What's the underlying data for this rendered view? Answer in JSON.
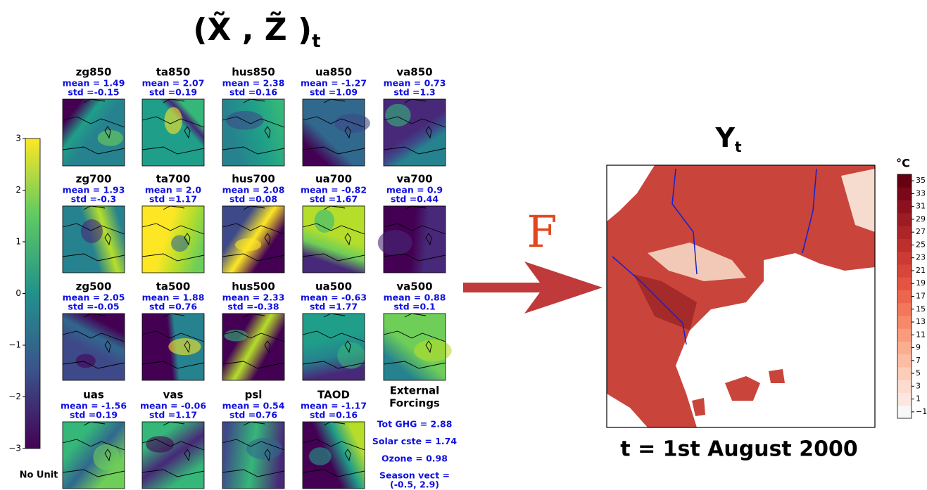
{
  "input_title": {
    "main": "(X̃ , Z̃ )",
    "subscript": "t"
  },
  "input_colorbar": {
    "ylim": [
      -3,
      3
    ],
    "yticks": [
      {
        "value": -3,
        "label": "−3"
      },
      {
        "value": -2,
        "label": "−2"
      },
      {
        "value": -1,
        "label": "−1"
      },
      0,
      1,
      2,
      3
    ],
    "unit": "No Unit"
  },
  "panels": [
    {
      "name": "zg850",
      "mean": "mean = 1.49",
      "std": "std =-0.15"
    },
    {
      "name": "ta850",
      "mean": "mean = 2.07",
      "std": "std =0.19"
    },
    {
      "name": "hus850",
      "mean": "mean = 2.38",
      "std": "std =0.16"
    },
    {
      "name": "ua850",
      "mean": "mean = -1.27",
      "std": "std =1.09"
    },
    {
      "name": "va850",
      "mean": "mean = 0.73",
      "std": "std =1.3"
    },
    {
      "name": "zg700",
      "mean": "mean = 1.93",
      "std": "std =-0.3"
    },
    {
      "name": "ta700",
      "mean": "mean = 2.0",
      "std": "std =1.17"
    },
    {
      "name": "hus700",
      "mean": "mean = 2.08",
      "std": "std =0.08"
    },
    {
      "name": "ua700",
      "mean": "mean = -0.82",
      "std": "std =1.67"
    },
    {
      "name": "va700",
      "mean": "mean = 0.9",
      "std": "std =0.44"
    },
    {
      "name": "zg500",
      "mean": "mean = 2.05",
      "std": "std =-0.05"
    },
    {
      "name": "ta500",
      "mean": "mean = 1.88",
      "std": "std =0.76"
    },
    {
      "name": "hus500",
      "mean": "mean = 2.33",
      "std": "std =-0.38"
    },
    {
      "name": "ua500",
      "mean": "mean = -0.63",
      "std": "std =1.77"
    },
    {
      "name": "va500",
      "mean": "mean = 0.88",
      "std": "std =0.1"
    },
    {
      "name": "uas",
      "mean": "mean = -1.56",
      "std": "std =0.19"
    },
    {
      "name": "vas",
      "mean": "mean = -0.06",
      "std": "std =1.17"
    },
    {
      "name": "psl",
      "mean": "mean = 0.54",
      "std": "std =0.76"
    },
    {
      "name": "TAOD",
      "mean": "mean = -1.17",
      "std": "std =0.16"
    }
  ],
  "external_forcings": {
    "title": [
      "External",
      "Forcings"
    ],
    "items": [
      "Tot GHG = 2.88",
      "Solar cste = 1.74",
      "Ozone = 0.98"
    ],
    "season": [
      "Season vect  =",
      "(-0.5, 2.9)"
    ]
  },
  "arrow_label": "F",
  "output_title": {
    "main": "Y",
    "subscript": "t"
  },
  "output_colorbar": {
    "unit": "°C",
    "ylim": [
      -2,
      36
    ],
    "yticks": [
      35,
      33,
      31,
      29,
      27,
      25,
      23,
      21,
      19,
      17,
      15,
      13,
      11,
      9,
      7,
      5,
      3,
      1,
      {
        "value": -1,
        "label": "−1"
      }
    ]
  },
  "date": "t = 1st August 2000"
}
